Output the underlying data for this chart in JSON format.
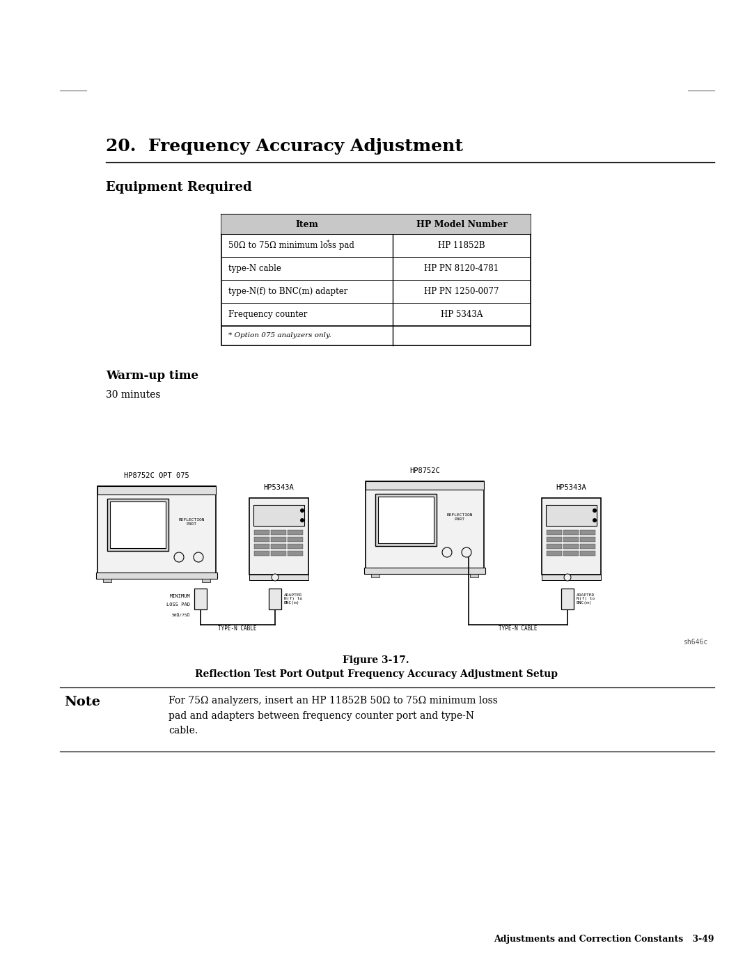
{
  "page_title": "20.  Frequency Accuracy Adjustment",
  "section1_title": "Equipment Required",
  "table_headers": [
    "Item",
    "HP Model Number"
  ],
  "table_rows": [
    [
      "50Ω to 75Ω minimum loss pad*",
      "HP 11852B"
    ],
    [
      "type-N cable",
      "HP PN 8120-4781"
    ],
    [
      "type-N(f) to BNC(m) adapter",
      "HP PN 1250-0077"
    ],
    [
      "Frequency counter",
      "HP 5343A"
    ]
  ],
  "table_footnote": "* Option 075 analyzers only.",
  "section2_title": "Warm-up time",
  "warmup_text": "30 minutes",
  "figure_label": "Figure 3-17.",
  "figure_caption": "Reflection Test Port Output Frequency Accuracy Adjustment Setup",
  "note_label": "Note",
  "note_text": "For 75Ω analyzers, insert an HP 11852B 50Ω to 75Ω minimum loss\npad and adapters between frequency counter port and type-N\ncable.",
  "diagram_label1": "HP8752C OPT 075",
  "diagram_label2": "HP5343A",
  "diagram_label3": "HP8752C",
  "diagram_label4": "HP5343A",
  "min_loss_pad_line1": "MINIMUM",
  "min_loss_pad_line2": "LOSS PAD",
  "min_loss_pad_ohm": "50Ω/75Ω",
  "adapter_label1": "ADAPTER\nN(f) to\nBNC(m)",
  "adapter_label2": "ADAPTER\nN(f) to\nBNC(m)",
  "type_n_cable1": "TYPE-N CABLE",
  "type_n_cable2": "TYPE-N CABLE",
  "reflection_port": "REFLECTION\nPORT",
  "sh_label": "sh646c",
  "footer_text": "Adjustments and Correction Constants   3-49",
  "bg_color": "#ffffff",
  "text_color": "#000000"
}
